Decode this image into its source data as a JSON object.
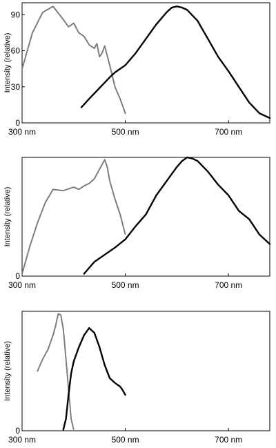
{
  "chart_data": [
    {
      "type": "line",
      "xlabel": "",
      "ylabel": "Intensity (relative)",
      "xlim": [
        300,
        780
      ],
      "ylim": [
        0,
        100
      ],
      "x_ticks": [
        {
          "value": 300,
          "label": "300 nm"
        },
        {
          "value": 500,
          "label": "500 nm"
        },
        {
          "value": 700,
          "label": "700 nm"
        }
      ],
      "y_ticks": [
        {
          "value": 0,
          "label": "0"
        },
        {
          "value": 30,
          "label": "30"
        },
        {
          "value": 60,
          "label": "60"
        },
        {
          "value": 90,
          "label": "90"
        }
      ],
      "grid": false,
      "series": [
        {
          "style": "dotted",
          "color": "#777777",
          "x": [
            300,
            320,
            340,
            360,
            380,
            390,
            400,
            410,
            420,
            430,
            440,
            445,
            450,
            455,
            460,
            465,
            470,
            480,
            490,
            500
          ],
          "y": [
            45,
            75,
            92,
            97,
            86,
            80,
            83,
            75,
            72,
            65,
            62,
            66,
            55,
            58,
            64,
            56,
            48,
            30,
            20,
            8
          ]
        },
        {
          "style": "solid",
          "color": "#000000",
          "x": [
            415,
            430,
            450,
            470,
            480,
            500,
            520,
            540,
            560,
            580,
            590,
            600,
            610,
            620,
            640,
            660,
            680,
            700,
            720,
            740,
            760,
            780
          ],
          "y": [
            13,
            20,
            29,
            38,
            42,
            48,
            58,
            70,
            82,
            92,
            96,
            97,
            96,
            94,
            85,
            70,
            55,
            43,
            30,
            17,
            8,
            4
          ]
        }
      ]
    },
    {
      "type": "line",
      "xlabel": "",
      "ylabel": "Intensity (relative)",
      "xlim": [
        300,
        780
      ],
      "ylim": [
        0,
        100
      ],
      "x_ticks": [
        {
          "value": 300,
          "label": "300 nm"
        },
        {
          "value": 500,
          "label": "500 nm"
        },
        {
          "value": 700,
          "label": "700 nm"
        }
      ],
      "y_ticks": [
        {
          "value": 0,
          "label": "0"
        }
      ],
      "grid": false,
      "series": [
        {
          "style": "dotted",
          "color": "#777777",
          "x": [
            300,
            315,
            330,
            345,
            360,
            380,
            400,
            410,
            420,
            430,
            440,
            450,
            460,
            465,
            470,
            480,
            490,
            500
          ],
          "y": [
            2,
            25,
            45,
            62,
            73,
            72,
            75,
            73,
            76,
            78,
            82,
            90,
            98,
            92,
            80,
            65,
            52,
            35
          ]
        },
        {
          "style": "solid",
          "color": "#000000",
          "x": [
            420,
            440,
            460,
            480,
            500,
            520,
            540,
            560,
            580,
            600,
            610,
            620,
            630,
            640,
            660,
            680,
            700,
            720,
            740,
            760,
            780
          ],
          "y": [
            2,
            12,
            18,
            24,
            31,
            42,
            52,
            68,
            80,
            92,
            97,
            100,
            99,
            97,
            88,
            77,
            68,
            55,
            48,
            35,
            27
          ]
        }
      ]
    },
    {
      "type": "line",
      "xlabel": "",
      "ylabel": "Intensity (relative)",
      "xlim": [
        300,
        780
      ],
      "ylim": [
        0,
        100
      ],
      "x_ticks": [
        {
          "value": 300,
          "label": "300 nm"
        },
        {
          "value": 500,
          "label": "500  nm"
        },
        {
          "value": 700,
          "label": "700 nm"
        }
      ],
      "y_ticks": [
        {
          "value": 0,
          "label": "0"
        }
      ],
      "grid": false,
      "series": [
        {
          "style": "dotted",
          "color": "#777777",
          "x": [
            330,
            340,
            350,
            360,
            365,
            370,
            375,
            380,
            385,
            390,
            395,
            400
          ],
          "y": [
            50,
            60,
            68,
            80,
            88,
            98,
            97,
            85,
            60,
            35,
            10,
            1
          ]
        },
        {
          "style": "solid",
          "color": "#000000",
          "x": [
            380,
            385,
            390,
            395,
            400,
            410,
            420,
            430,
            440,
            450,
            460,
            470,
            480,
            490,
            495,
            500
          ],
          "y": [
            1,
            10,
            30,
            48,
            58,
            70,
            80,
            86,
            82,
            70,
            55,
            44,
            40,
            37,
            34,
            30
          ]
        }
      ]
    }
  ]
}
